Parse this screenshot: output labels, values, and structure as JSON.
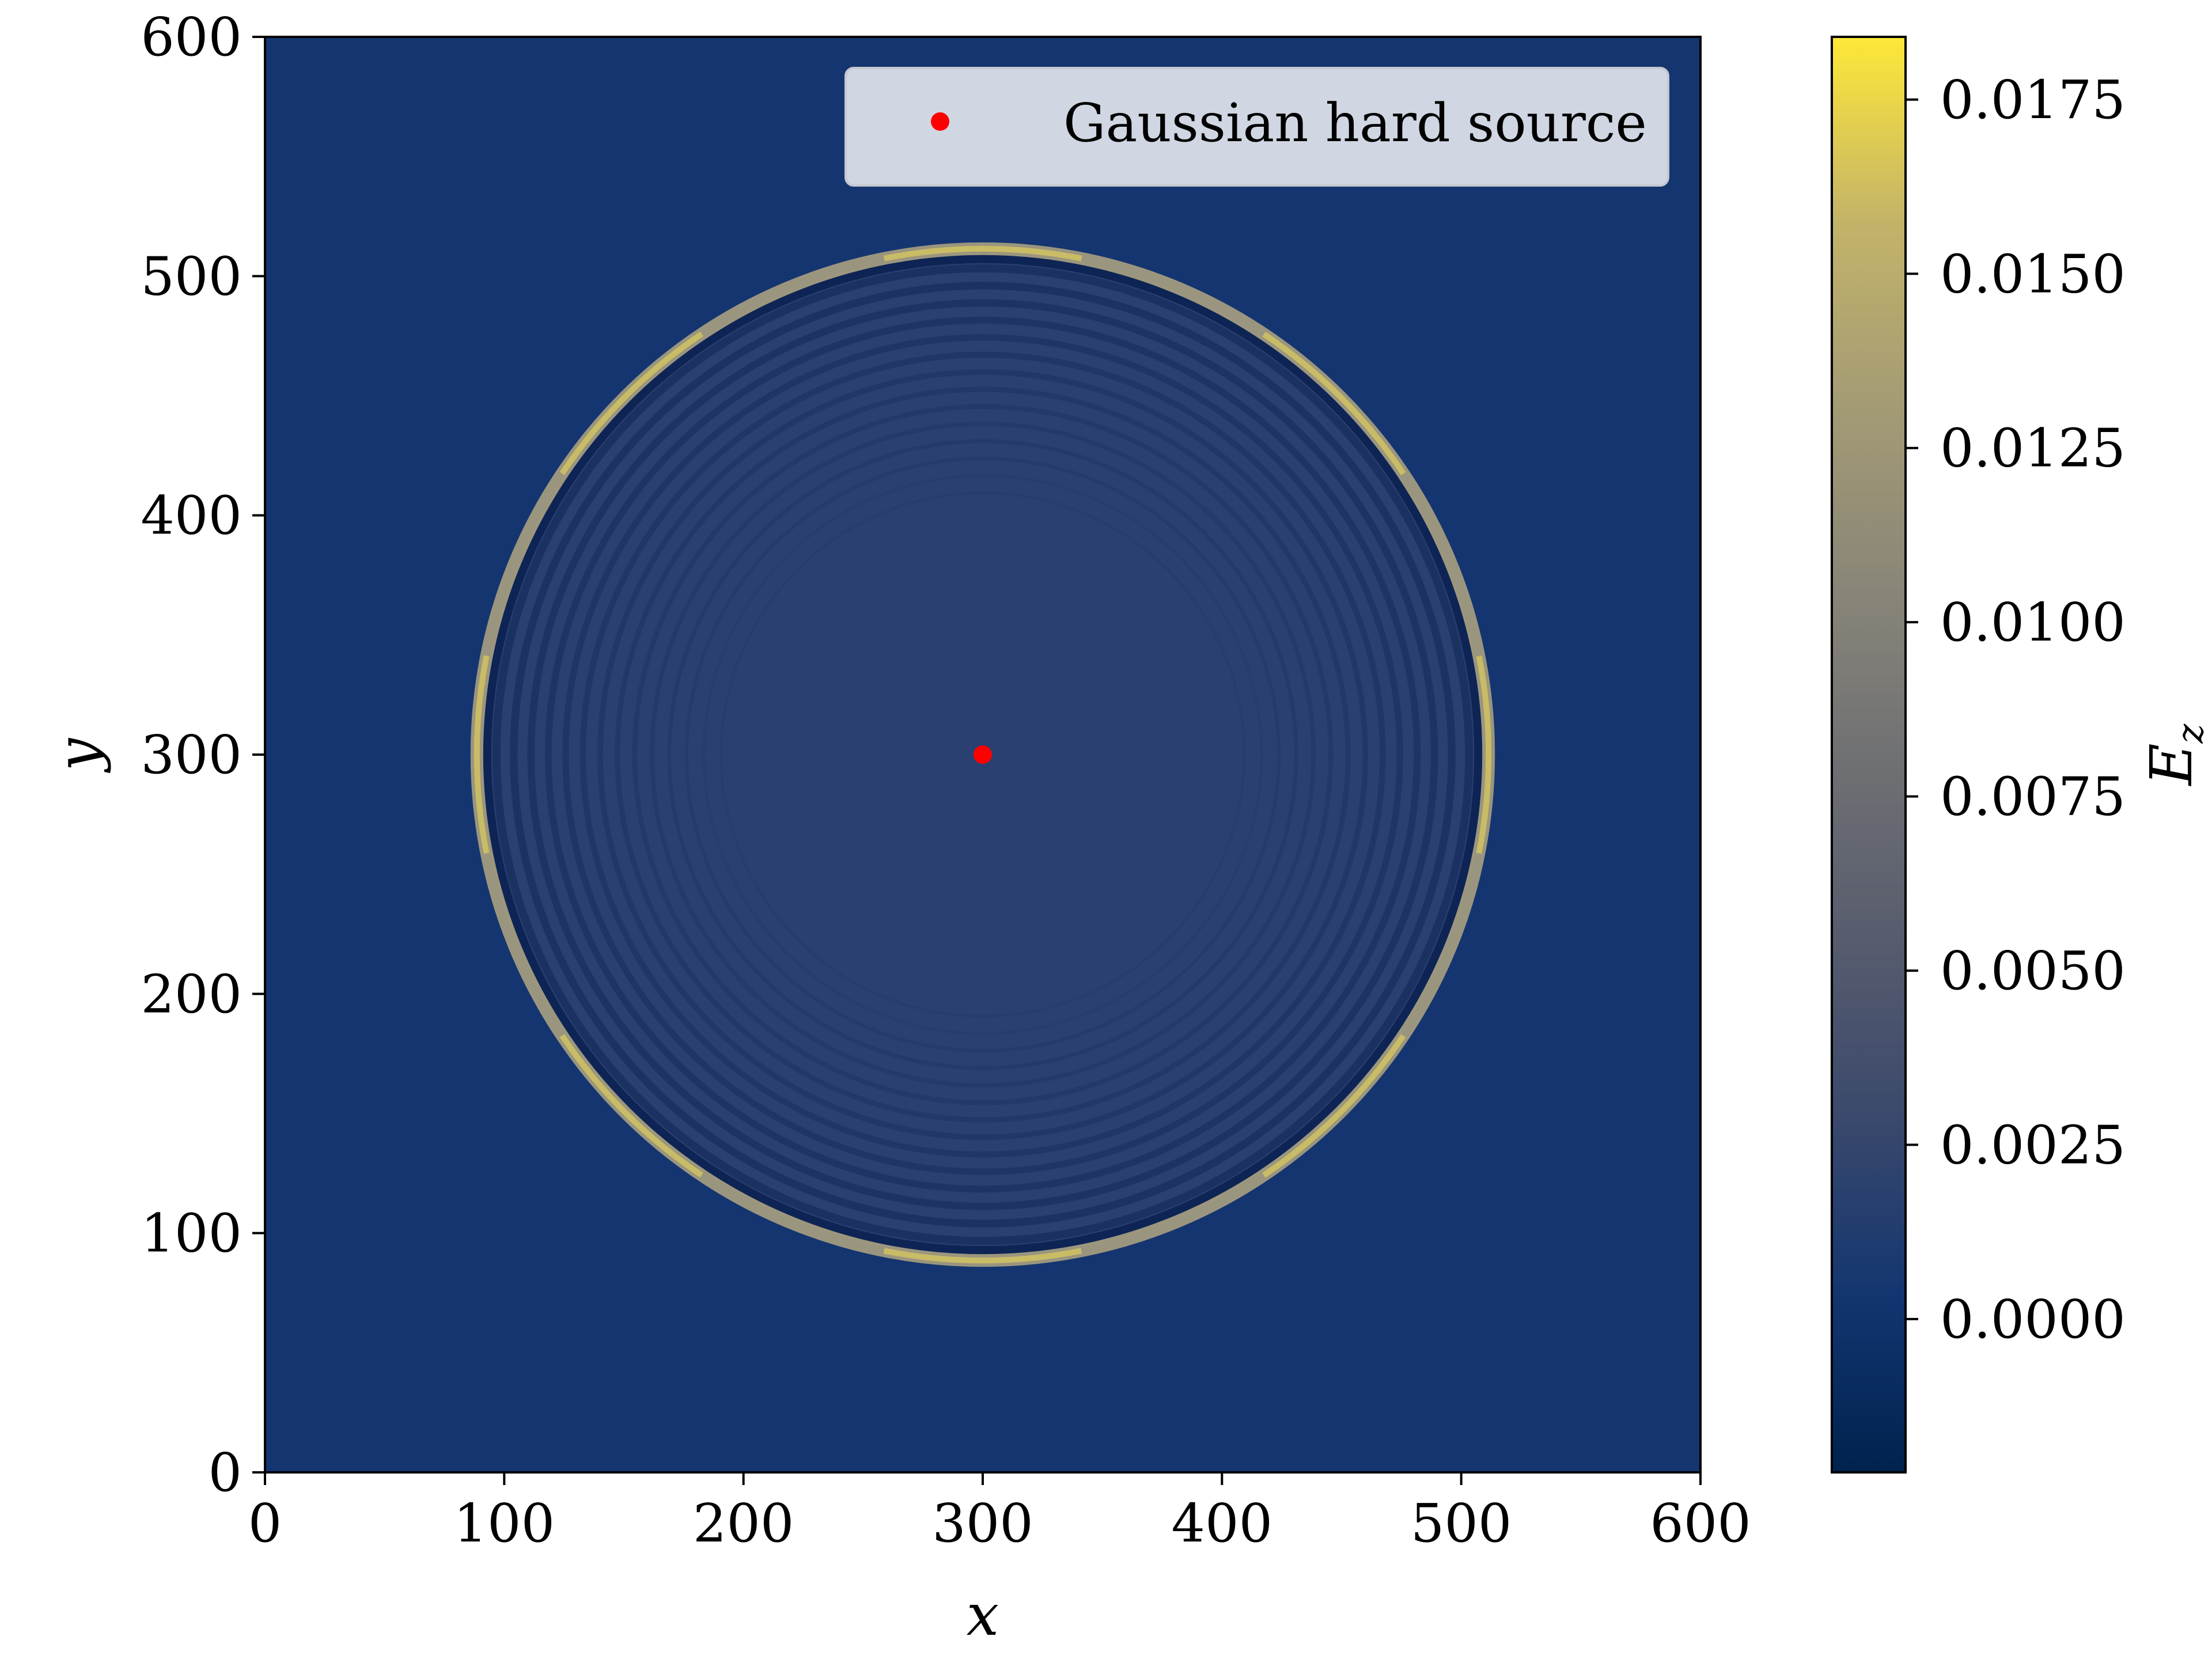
{
  "chart_data": {
    "type": "heatmap",
    "title": "",
    "xlabel": "x",
    "ylabel": "y",
    "xlim": [
      0,
      600
    ],
    "ylim": [
      0,
      600
    ],
    "x_ticks": [
      0,
      100,
      200,
      300,
      400,
      500,
      600
    ],
    "y_ticks": [
      0,
      100,
      200,
      300,
      400,
      500,
      600
    ],
    "x_tick_labels": [
      "0",
      "100",
      "200",
      "300",
      "400",
      "500",
      "600"
    ],
    "y_tick_labels": [
      "0",
      "100",
      "200",
      "300",
      "400",
      "500",
      "600"
    ],
    "colorbar": {
      "label": "E",
      "label_subscript": "z",
      "colormap": "cividis",
      "range": [
        -0.0022,
        0.0184
      ],
      "ticks": [
        0.0,
        0.0025,
        0.005,
        0.0075,
        0.01,
        0.0125,
        0.015,
        0.0175
      ],
      "tick_labels": [
        "0.0000",
        "0.0025",
        "0.0050",
        "0.0075",
        "0.0100",
        "0.0125",
        "0.0150",
        "0.0175"
      ]
    },
    "field": {
      "background_value": 0.0,
      "wavefront_center": [
        300,
        300
      ],
      "wavefront_radius": 210,
      "wavefront_peak_value": 0.0184,
      "interior_ring_count": 14
    },
    "series": [
      {
        "name": "Gaussian hard source",
        "type": "scatter",
        "x": [
          300
        ],
        "y": [
          300
        ],
        "color": "#ff0000"
      }
    ],
    "legend": {
      "position": "top-right"
    }
  }
}
